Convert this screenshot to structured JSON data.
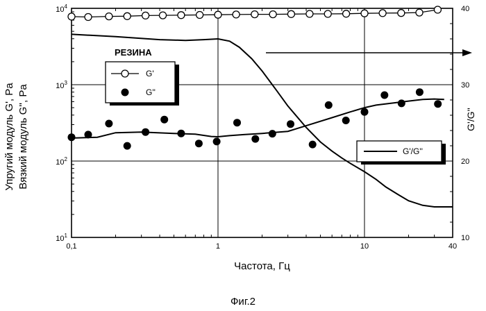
{
  "figure_caption": "Фиг.2",
  "chart_data": {
    "type": "line",
    "x_label": "Частота, Гц",
    "y_left_label_line1": "Упругий модуль G', Pa",
    "y_left_label_line2": "Вязкий модуль G'', Pa",
    "y_right_label": "G'/G''",
    "x_scale": "log",
    "y_left_scale": "log",
    "y_right_scale": "linear",
    "xlim": [
      0.1,
      40
    ],
    "y_left_lim": [
      10,
      10000
    ],
    "y_right_lim": [
      10,
      40
    ],
    "x_ticks": [
      {
        "v": 0.1,
        "t": "0,1"
      },
      {
        "v": 1,
        "t": "1"
      },
      {
        "v": 10,
        "t": "10"
      },
      {
        "v": 40,
        "t": "40"
      }
    ],
    "y_left_ticks": [
      {
        "v": 10,
        "base": "10",
        "exp": "1"
      },
      {
        "v": 100,
        "base": "10",
        "exp": "2"
      },
      {
        "v": 1000,
        "base": "10",
        "exp": "3"
      },
      {
        "v": 10000,
        "base": "10",
        "exp": "4"
      }
    ],
    "y_right_ticks": [
      10,
      20,
      30,
      40
    ],
    "grid": true,
    "annotation": "РЕЗИНА",
    "legend_1": {
      "position": "top-left",
      "entries": [
        "G'",
        "G''"
      ]
    },
    "legend_2": {
      "position": "right",
      "entries": [
        "G'/G''"
      ]
    },
    "series": [
      {
        "name": "G'",
        "axis": "left",
        "marker": "open-circle",
        "x": [
          0.1,
          0.13,
          0.18,
          0.24,
          0.32,
          0.42,
          0.56,
          0.75,
          1.0,
          1.33,
          1.78,
          2.37,
          3.16,
          4.22,
          5.62,
          7.5,
          10,
          13.3,
          17.8,
          23.7,
          31.6
        ],
        "y": [
          7800,
          7700,
          7850,
          7900,
          8050,
          8100,
          8150,
          8200,
          8250,
          8300,
          8350,
          8350,
          8400,
          8450,
          8450,
          8500,
          8600,
          8650,
          8700,
          8800,
          9600
        ]
      },
      {
        "name": "G''",
        "axis": "left",
        "marker": "filled-circle",
        "x": [
          0.1,
          0.13,
          0.18,
          0.24,
          0.32,
          0.43,
          0.56,
          0.74,
          0.98,
          1.35,
          1.8,
          2.35,
          3.13,
          4.42,
          5.69,
          7.47,
          10,
          13.7,
          17.9,
          23.8,
          31.7
        ],
        "y": [
          205,
          222,
          310,
          158,
          240,
          350,
          230,
          170,
          180,
          318,
          195,
          228,
          305,
          165,
          540,
          340,
          440,
          730,
          570,
          800,
          560
        ]
      },
      {
        "name": "G'/G''",
        "axis": "right",
        "marker": "line",
        "x": [
          0.1,
          0.2,
          0.4,
          0.6,
          0.8,
          1.0,
          1.2,
          1.4,
          1.7,
          2.0,
          2.5,
          3.0,
          3.5,
          4.0,
          5.0,
          6.0,
          7.0,
          8.0,
          10,
          12,
          14,
          17,
          20,
          25,
          30,
          35,
          40
        ],
        "y": [
          36.6,
          36.3,
          35.9,
          35.8,
          35.9,
          36.0,
          35.7,
          34.9,
          33.4,
          31.8,
          29.3,
          27.2,
          25.7,
          24.4,
          22.5,
          21.3,
          20.4,
          19.7,
          18.6,
          17.6,
          16.6,
          15.6,
          14.8,
          14.2,
          14.0,
          14.0,
          14.0
        ]
      },
      {
        "name": "",
        "axis": "left",
        "marker": "line",
        "x": [
          0.1,
          0.15,
          0.2,
          0.3,
          0.5,
          0.7,
          0.9,
          1.0,
          1.2,
          1.5,
          2.0,
          3.0,
          4.0,
          6.0,
          8.0,
          10,
          12,
          15,
          20,
          25,
          30,
          35
        ],
        "y": [
          200,
          205,
          235,
          240,
          230,
          225,
          210,
          208,
          215,
          222,
          230,
          245,
          290,
          370,
          440,
          500,
          540,
          570,
          610,
          640,
          650,
          640
        ]
      }
    ]
  }
}
